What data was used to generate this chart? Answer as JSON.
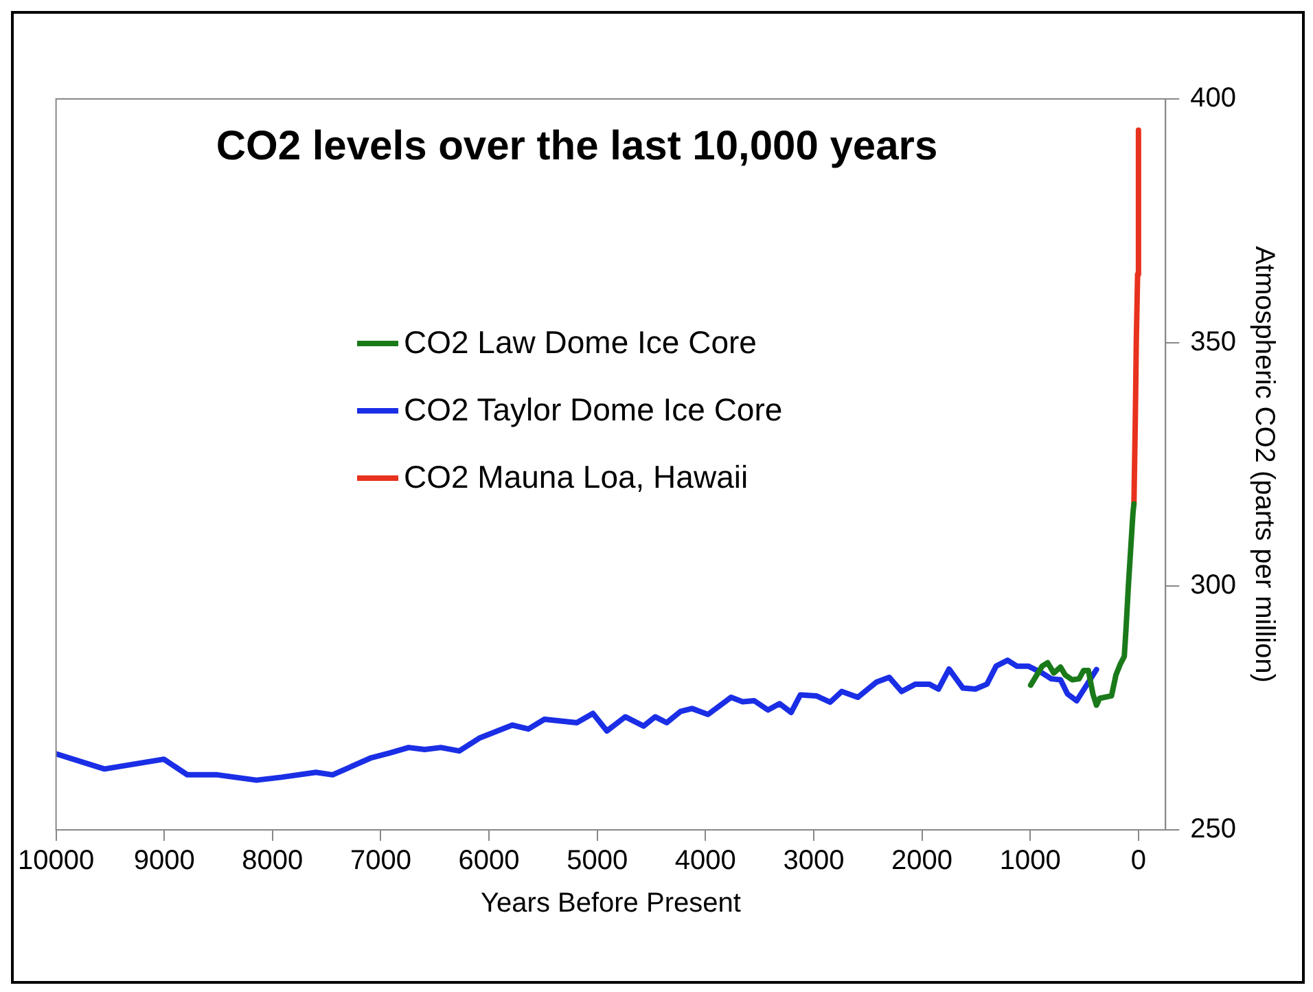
{
  "chart_data": {
    "type": "line",
    "title": "CO2 levels over the last 10,000 years",
    "xlabel": "Years Before Present",
    "y2label": "Atmospheric CO2 (parts per million)",
    "xlim": [
      10000,
      -250
    ],
    "xticks": [
      10000,
      9000,
      8000,
      7000,
      6000,
      5000,
      4000,
      3000,
      2000,
      1000,
      0
    ],
    "y2lim": [
      250,
      400
    ],
    "y2ticks": [
      250,
      300,
      350,
      400
    ],
    "grid": false,
    "legend": "top left",
    "marker": "none",
    "line_style": "solid",
    "series": [
      {
        "name": "CO2 Law Dome Ice Core",
        "color": "#1a7a1a",
        "axis": "y2",
        "x": [
          996,
          890,
          839,
          783,
          720,
          677,
          613,
          549,
          507,
          463,
          421,
          388,
          358,
          249,
          208,
          166,
          131,
          115,
          93,
          51,
          42
        ],
        "values": [
          279.7,
          283.6,
          284.3,
          282.2,
          283.4,
          281.8,
          280.8,
          281,
          282.7,
          282.7,
          277.9,
          275.6,
          277,
          277.5,
          281.8,
          284.1,
          285.6,
          291.3,
          300.2,
          315,
          316.9
        ]
      },
      {
        "name": "CO2 Taylor Dome Ice Core",
        "color": "#1a2ee6",
        "axis": "y2",
        "x": [
          10000,
          9553,
          9004,
          8787,
          8510,
          8148,
          7918,
          7599,
          7445,
          7088,
          6913,
          6743,
          6594,
          6445,
          6275,
          6083,
          5785,
          5636,
          5488,
          5189,
          5040,
          4911,
          4741,
          4572,
          4465,
          4358,
          4231,
          4125,
          3976,
          3764,
          3657,
          3550,
          3423,
          3316,
          3209,
          3124,
          2976,
          2848,
          2742,
          2593,
          2422,
          2303,
          2188,
          2060,
          1933,
          1848,
          1750,
          1622,
          1507,
          1400,
          1315,
          1209,
          1124,
          1018,
          890,
          805,
          720,
          656,
          571,
          388
        ],
        "values": [
          265.6,
          262.5,
          264.5,
          261.3,
          261.3,
          260.2,
          260.8,
          261.8,
          261.3,
          264.8,
          265.8,
          266.9,
          266.5,
          266.9,
          266.2,
          268.9,
          271.5,
          270.7,
          272.7,
          272,
          273.9,
          270.3,
          273.2,
          271.3,
          273.2,
          272,
          274.3,
          274.9,
          273.7,
          277.2,
          276.3,
          276.5,
          274.6,
          275.9,
          274.1,
          277.7,
          277.5,
          276.2,
          278.4,
          277.2,
          280.3,
          281.3,
          278.4,
          279.9,
          279.9,
          278.9,
          283,
          279.1,
          278.9,
          279.9,
          283.6,
          284.8,
          283.6,
          283.6,
          282.2,
          281,
          280.8,
          277.9,
          276.5,
          282.9
        ]
      },
      {
        "name": "CO2 Mauna Loa, Hawaii",
        "color": "#e8321e",
        "axis": "y2",
        "x": [
          42,
          29,
          20,
          8,
          0
        ],
        "values": [
          316.9,
          334.6,
          350.3,
          364,
          393.6
        ]
      }
    ]
  }
}
